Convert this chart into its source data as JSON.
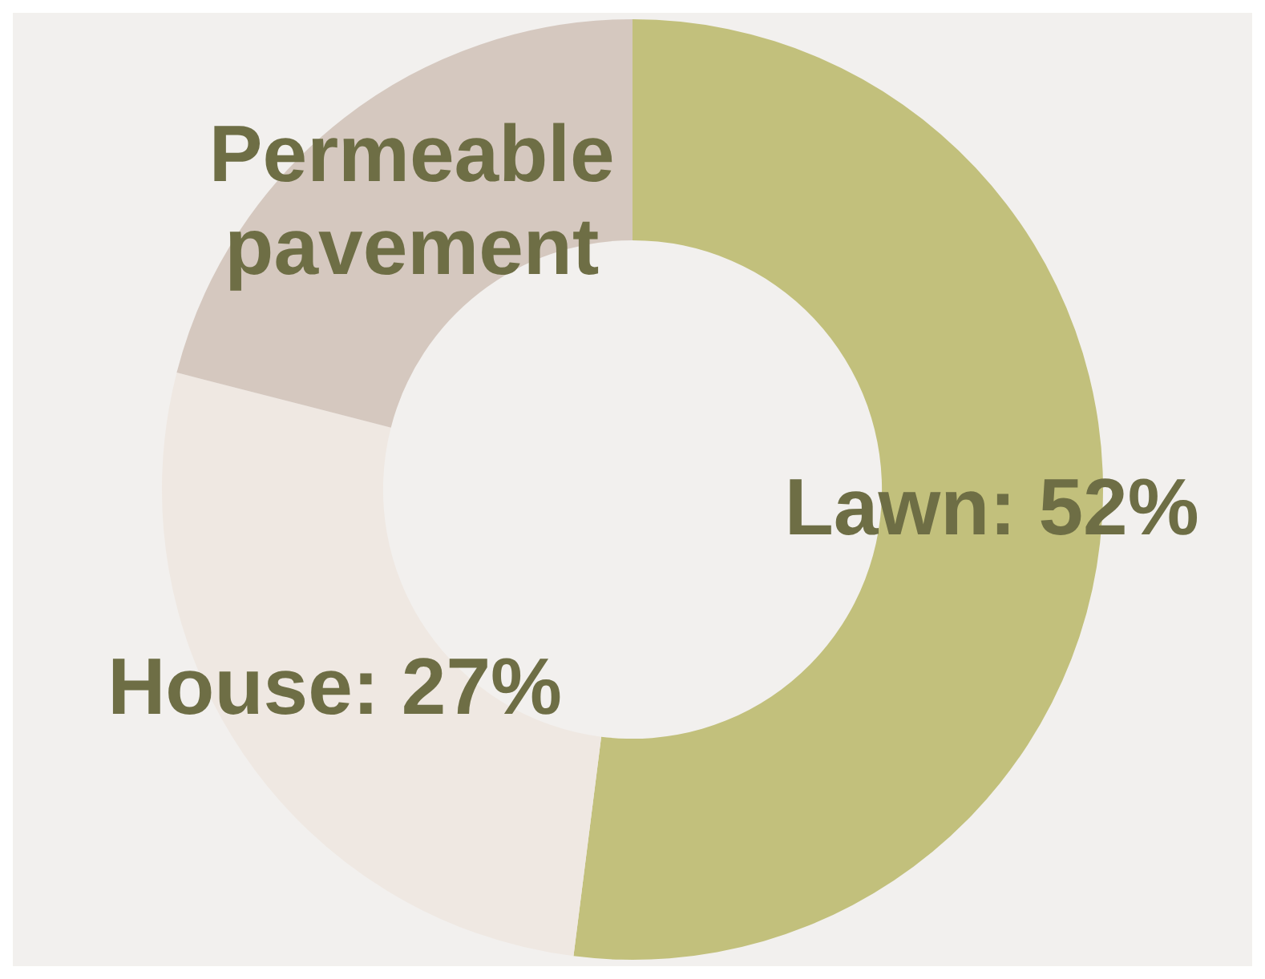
{
  "chart_data": {
    "type": "donut",
    "categories": [
      "Lawn",
      "House",
      "Permeable pavement"
    ],
    "values": [
      52,
      27,
      21
    ],
    "value_labels": [
      "52%",
      "27%",
      null
    ],
    "colors": [
      "#c2c07c",
      "#efe8e2",
      "#d5c8bf"
    ],
    "legend": false
  }
}
